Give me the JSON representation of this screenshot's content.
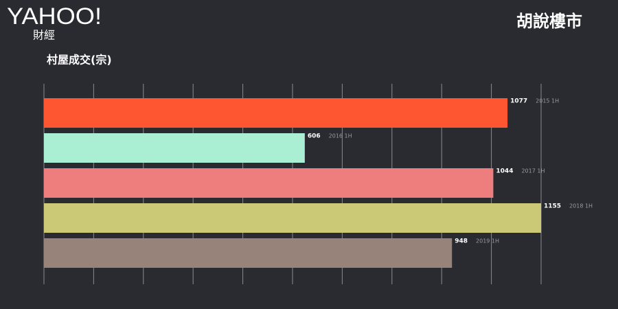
{
  "header": {
    "logo": "YAHOO!",
    "logo_sub": "財經",
    "brand": "胡說樓市"
  },
  "chart_data": {
    "type": "hbar",
    "title": "村屋成交(宗)",
    "categories": [
      "2015 1H",
      "2016 1H",
      "2017 1H",
      "2018 1H",
      "2019 1H"
    ],
    "values": [
      1077,
      606,
      1044,
      1155,
      948
    ],
    "colors": [
      "#fd5631",
      "#aaeed3",
      "#ee7e7e",
      "#cbc876",
      "#978379"
    ],
    "xlim": [
      0,
      1155
    ],
    "xticks": [
      0,
      115.5,
      231,
      346.5,
      462,
      577.5,
      693,
      808.5,
      924,
      1039.5,
      1155
    ],
    "grid": true
  }
}
